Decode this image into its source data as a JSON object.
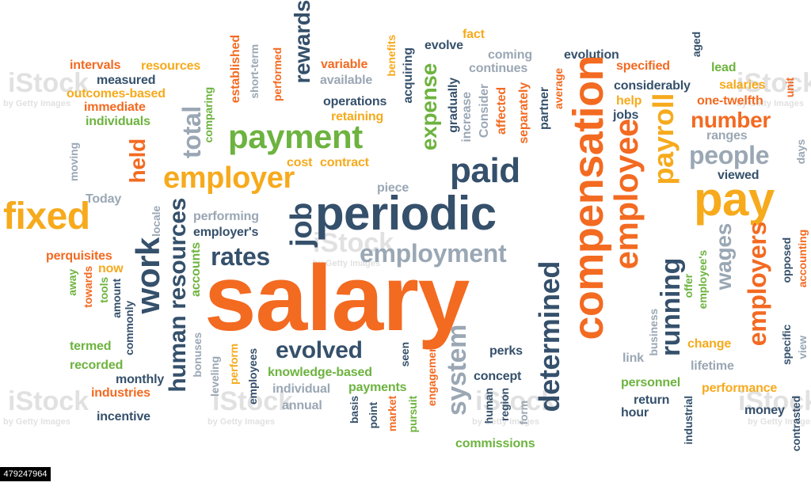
{
  "cloud": {
    "main_word": "salary",
    "words": [
      "intervals",
      "resources",
      "measured",
      "outcomes-based",
      "immediate",
      "individuals",
      "established",
      "short-term",
      "performed",
      "variable",
      "benefits",
      "available",
      "retaining",
      "rewards",
      "fact",
      "evolve",
      "coming",
      "continues",
      "evolution",
      "specified",
      "aged",
      "lead",
      "considerably",
      "salaries",
      "unit",
      "help",
      "one-twelfth",
      "jobs",
      "number",
      "ranges",
      "days",
      "people",
      "viewed",
      "payroll",
      "pay",
      "employee",
      "compensation",
      "average",
      "partner",
      "separately",
      "affected",
      "Consider",
      "increase",
      "gradually",
      "expense",
      "acquiring",
      "operations",
      "payment",
      "total",
      "comparing",
      "held",
      "employer",
      "cost",
      "contract",
      "piece",
      "paid",
      "Today",
      "moving",
      "fixed",
      "locale",
      "performing",
      "employer's",
      "periodic",
      "job",
      "rates",
      "employment",
      "perquisites",
      "now",
      "work",
      "human resources",
      "accounts",
      "away",
      "towards",
      "tools",
      "amount",
      "commonly",
      "evolved",
      "determined",
      "system",
      "perks",
      "concept",
      "region",
      "human",
      "basis",
      "point",
      "market",
      "pursuit",
      "engagement",
      "seen",
      "knowledge-based",
      "payments",
      "individual",
      "annual",
      "employees",
      "leveling",
      "bonuses",
      "perform",
      "termed",
      "recorded",
      "monthly",
      "industries",
      "incentive",
      "commissions",
      "form",
      "business",
      "link",
      "return",
      "hour",
      "industrial",
      "personnel",
      "performance",
      "lifetime",
      "change",
      "offer",
      "employee's",
      "wages",
      "running",
      "employers",
      "specific",
      "opposed",
      "accounting",
      "view",
      "money",
      "contrasted"
    ],
    "stock_id": "479247964",
    "watermarks": [
      "iStock",
      "by Getty Images"
    ]
  },
  "colors": {
    "orange": "#f36a21",
    "yellow": "#f6aa1c",
    "green": "#6db33f",
    "navy": "#35506b",
    "gray": "#9aa7b4"
  }
}
